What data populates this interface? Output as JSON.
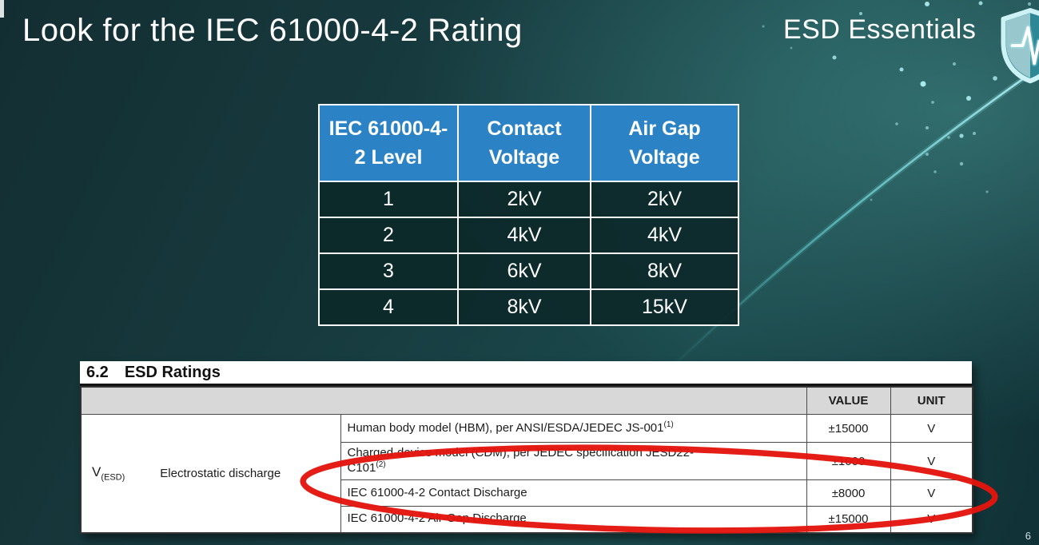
{
  "slide": {
    "title": "Look for the IEC 61000-4-2 Rating",
    "brand": "ESD Essentials",
    "page_number": "6",
    "logo_icon": "shield-heartbeat-icon"
  },
  "colors": {
    "background_teal": "#1a4649",
    "header_blue": "#2b82c4",
    "table_cell_dark": "#0d292a",
    "highlight_red": "#e3150d",
    "logo_cyan": "#cdf2f6",
    "datasheet_header_gray": "#d8d8d8"
  },
  "iec_table": {
    "headers": [
      "IEC 61000-4-2 Level",
      "Contact Voltage",
      "Air Gap Voltage"
    ],
    "rows": [
      [
        "1",
        "2kV",
        "2kV"
      ],
      [
        "2",
        "4kV",
        "4kV"
      ],
      [
        "3",
        "6kV",
        "8kV"
      ],
      [
        "4",
        "8kV",
        "15kV"
      ]
    ]
  },
  "datasheet": {
    "section_number": "6.2",
    "section_title": "ESD Ratings",
    "value_header": "VALUE",
    "unit_header": "UNIT",
    "symbol": "V",
    "symbol_subscript": "(ESD)",
    "parameter": "Electrostatic discharge",
    "rows": [
      {
        "desc": "Human body model (HBM), per ANSI/ESDA/JEDEC JS-001",
        "desc2": "",
        "sup": "(1)",
        "value": "±15000",
        "unit": "V"
      },
      {
        "desc": "Charged-device model (CDM), per JEDEC specification JESD22-",
        "desc2": "C101",
        "sup": "(2)",
        "value": "±1000",
        "unit": "V"
      },
      {
        "desc": "IEC 61000-4-2 Contact Discharge",
        "desc2": "",
        "sup": "",
        "value": "±8000",
        "unit": "V"
      },
      {
        "desc": "IEC 61000-4-2 Air-Gap Discharge",
        "desc2": "",
        "sup": "",
        "value": "±15000",
        "unit": "V"
      }
    ]
  }
}
